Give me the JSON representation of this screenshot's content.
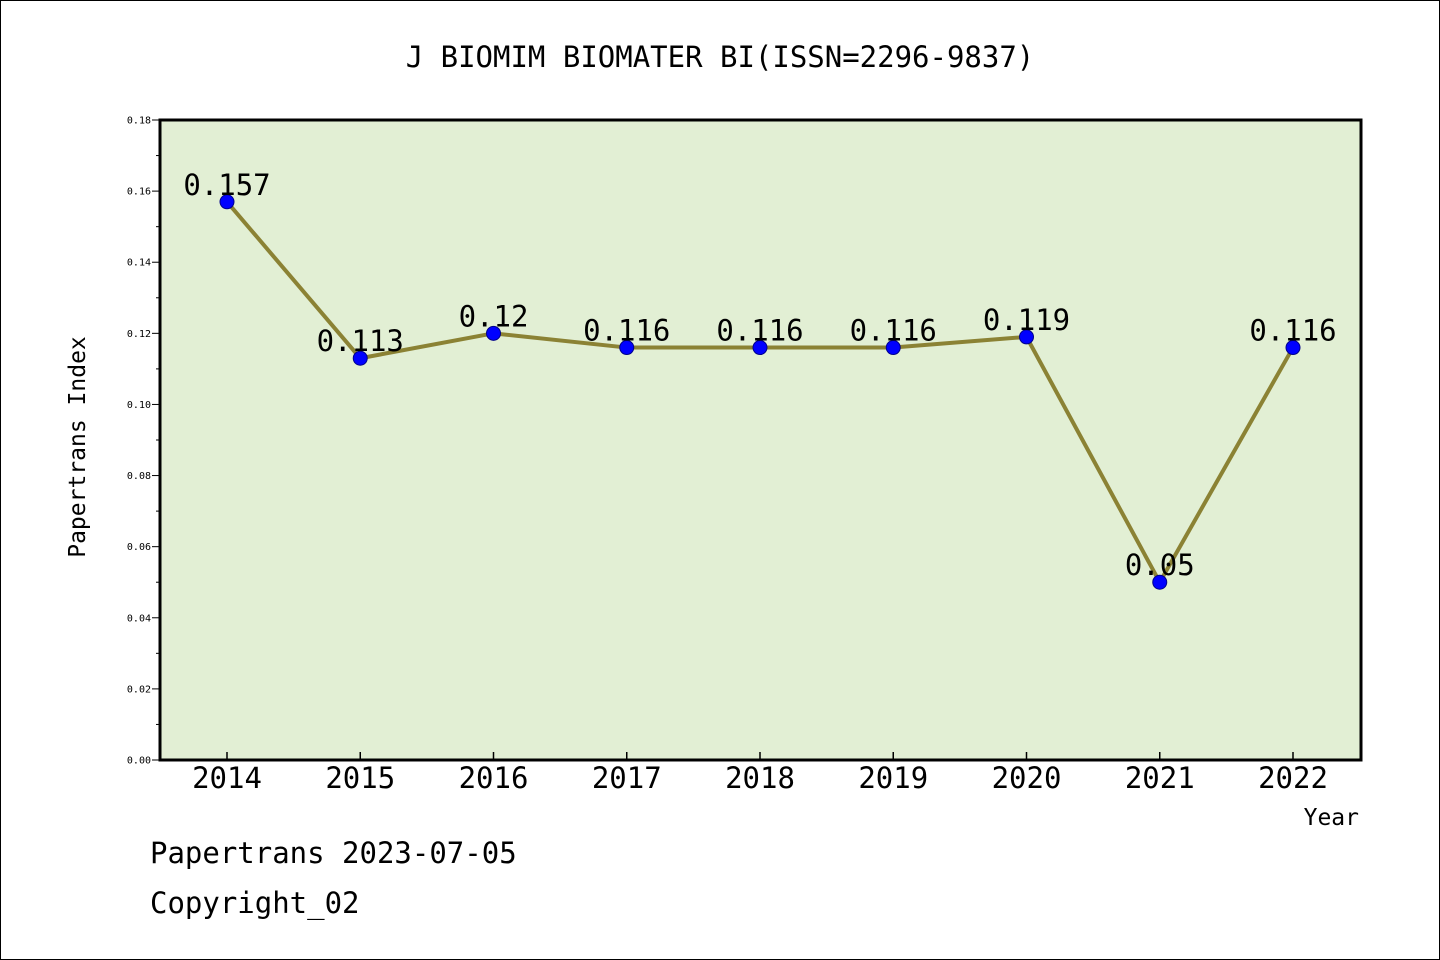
{
  "chart_data": {
    "type": "line",
    "title": "J BIOMIM BIOMATER BI(ISSN=2296-9837)",
    "xlabel": "Year",
    "ylabel": "Papertrans Index",
    "categories": [
      "2014",
      "2015",
      "2016",
      "2017",
      "2018",
      "2019",
      "2020",
      "2021",
      "2022"
    ],
    "series": [
      {
        "values": [
          0.157,
          0.113,
          0.12,
          0.116,
          0.116,
          0.116,
          0.119,
          0.05,
          0.116
        ],
        "data_labels": [
          "0.157",
          "0.113",
          "0.12",
          "0.116",
          "0.116",
          "0.116",
          "0.119",
          "0.05",
          "0.116"
        ]
      }
    ],
    "ylim": [
      0,
      0.18
    ],
    "yticks": [
      "0.00",
      "0.02",
      "0.04",
      "0.06",
      "0.08",
      "0.10",
      "0.12",
      "0.14",
      "0.16",
      "0.18"
    ],
    "grid": false,
    "legend": "none",
    "colors": {
      "plot_background": "#e2efd4",
      "line": "#8b8234",
      "marker": "#0000ff",
      "marker_edge": "#00008b"
    }
  },
  "footer": {
    "date_text": "Papertrans 2023-07-05",
    "copyright_text": "Copyright_02"
  }
}
